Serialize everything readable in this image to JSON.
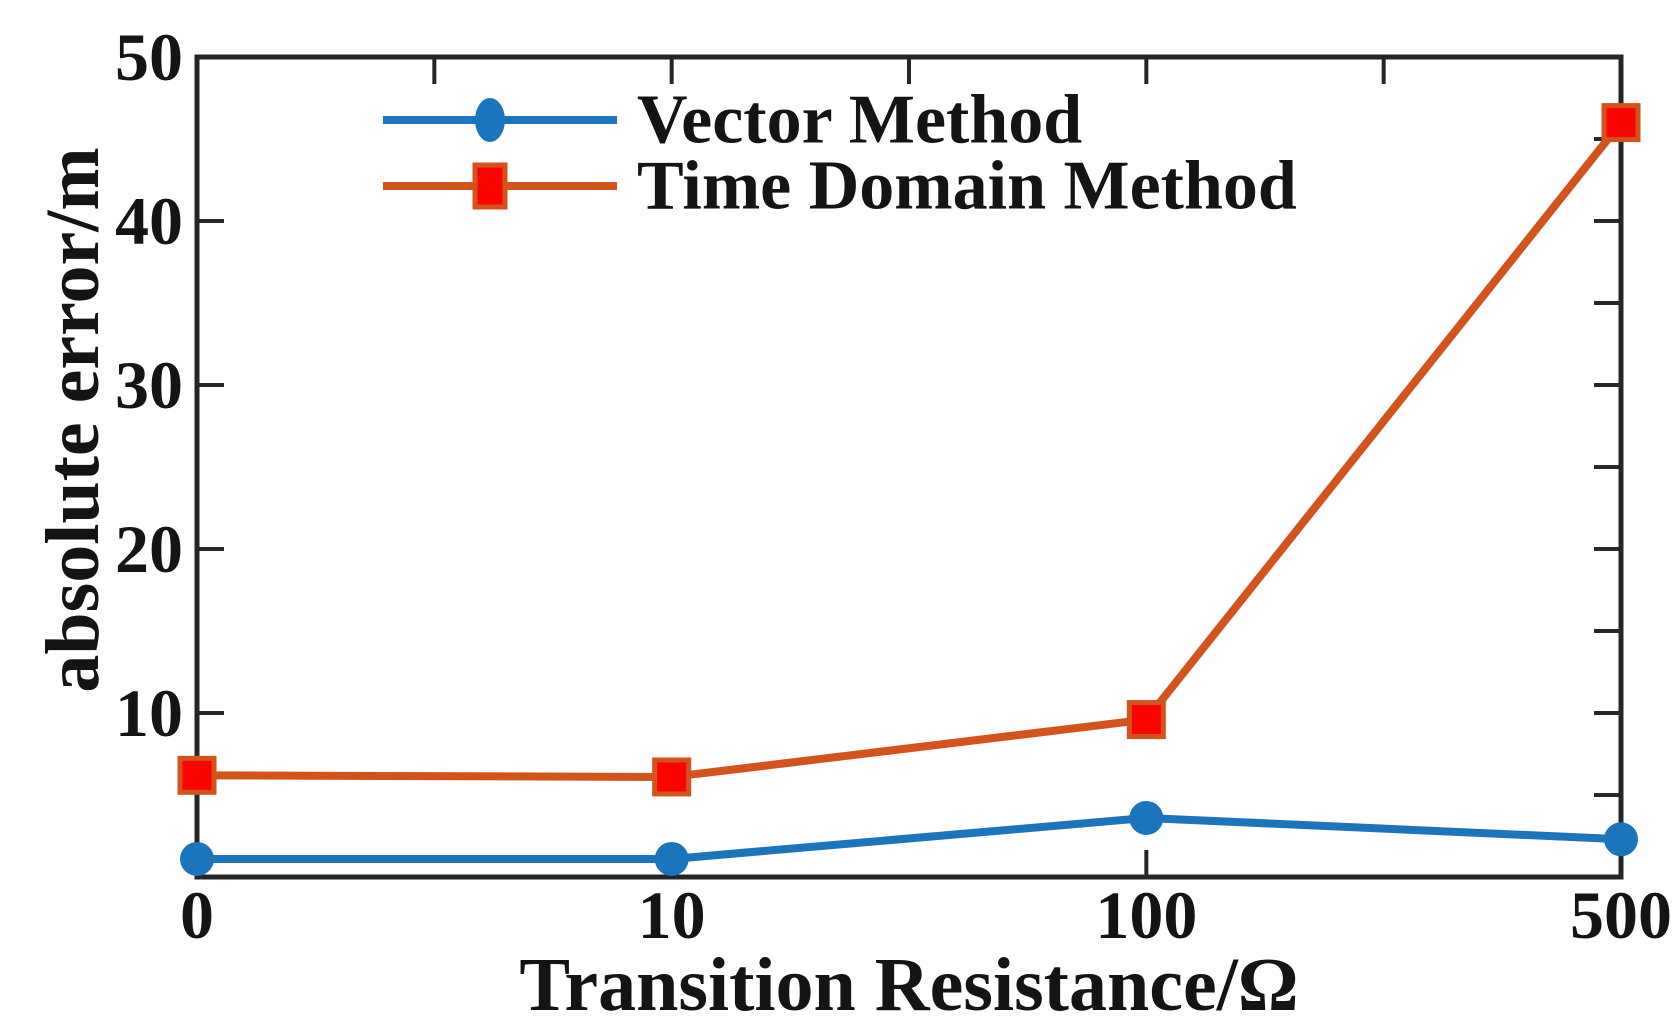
{
  "chart_data": {
    "type": "line",
    "categories": [
      "0",
      "10",
      "100",
      "500"
    ],
    "series": [
      {
        "name": "Vector Method",
        "values": [
          1.1,
          1.1,
          3.6,
          2.3
        ],
        "line_color": "#1b75bc",
        "marker": "circle",
        "marker_fill": "#1b75bc",
        "marker_edge": "#1b75bc"
      },
      {
        "name": "Time Domain Method",
        "values": [
          6.2,
          6.1,
          9.6,
          46
        ],
        "line_color": "#d4531d",
        "marker": "square",
        "marker_fill": "#fb0400",
        "marker_edge": "#d4531d"
      }
    ],
    "title": "",
    "xlabel": "Transition Resistance/Ω",
    "ylabel": "absolute error/m",
    "ylim": [
      0,
      50
    ],
    "yticks_left_labeled": [
      10,
      20,
      30,
      40,
      50
    ],
    "yticks_right_minor": [
      5,
      10,
      15,
      20,
      25,
      30,
      35,
      40,
      45
    ],
    "xticks_bottom_labeled": [
      "0",
      "10",
      "100",
      "500"
    ],
    "xticks_top_minor_positions": [
      0.5,
      1,
      1.5,
      2,
      2.5
    ],
    "x_spacing": "equal-categorical",
    "grid": false,
    "legend_position": "top-left-inside",
    "legend_frame": false,
    "axis_color": "#262626",
    "text_color": "#141414",
    "background_color": "#ffffff"
  }
}
